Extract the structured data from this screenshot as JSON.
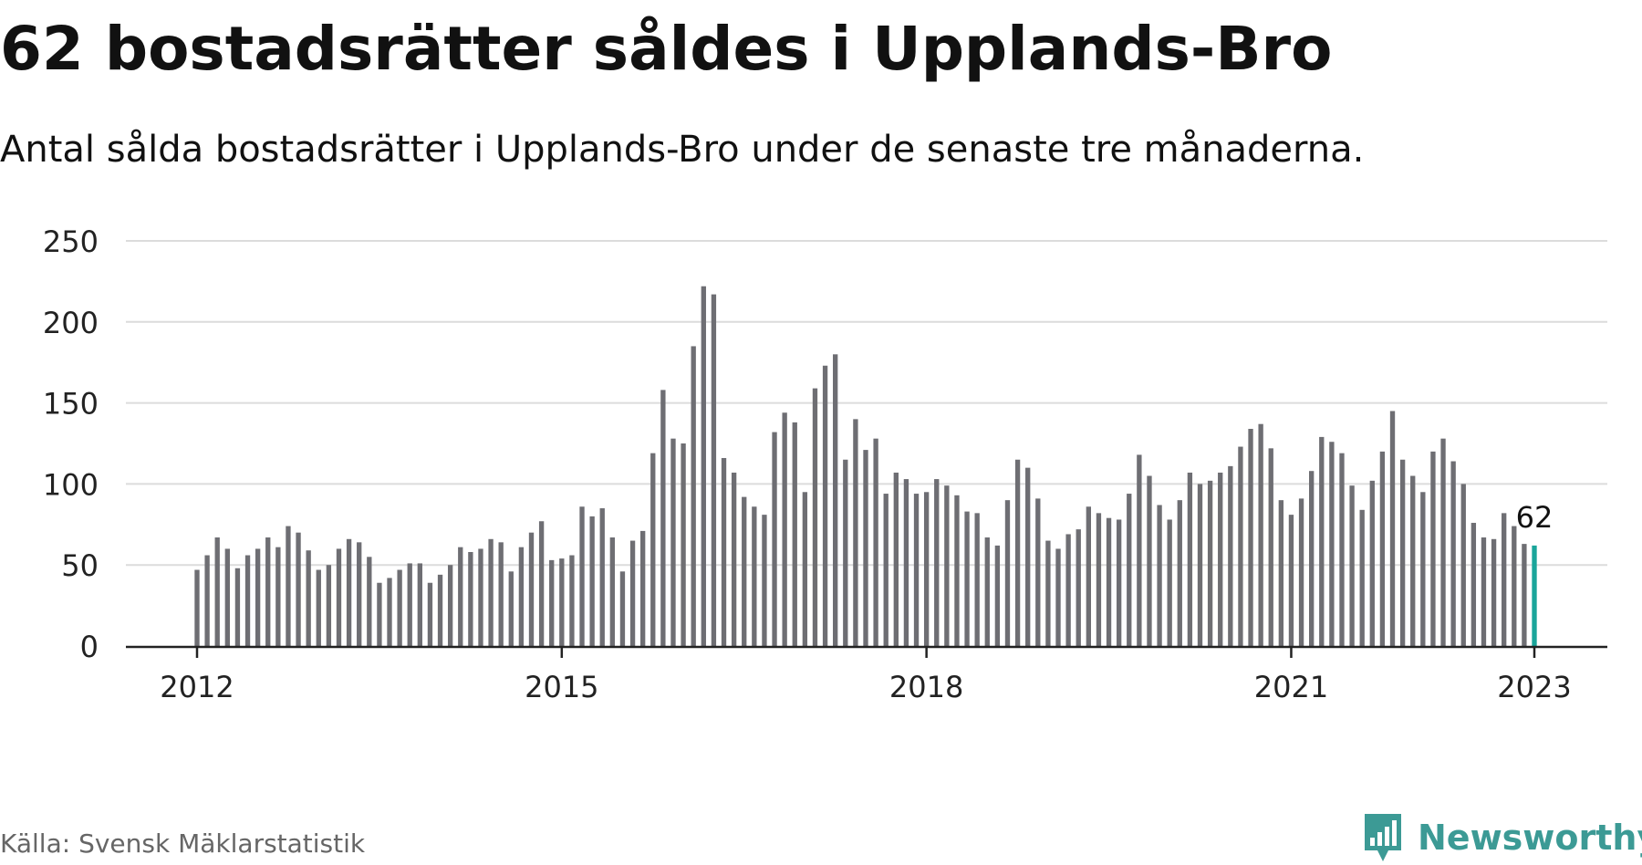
{
  "title": "62 bostadsrätter såldes i Upplands-Bro",
  "subtitle": "Antal sålda bostadsrätter i Upplands-Bro under de senaste tre månaderna.",
  "source": "Källa: Svensk Mäklarstatistik",
  "brand": {
    "name": "Newsworthy",
    "logo_icon": "newsworthy-logo-icon",
    "color": "#3c9a95"
  },
  "chart_data": {
    "type": "bar",
    "x_start": "2012-01",
    "x_end": "2023-01",
    "x_ticks": [
      "2012",
      "2015",
      "2018",
      "2021",
      "2023"
    ],
    "y_ticks": [
      0,
      50,
      100,
      150,
      200,
      250
    ],
    "ylim": [
      0,
      250
    ],
    "grid": true,
    "bar_color": "#6e6e73",
    "highlight_color": "#1aa59a",
    "highlight_label": "62",
    "values": [
      47,
      56,
      67,
      60,
      48,
      56,
      60,
      67,
      61,
      74,
      70,
      59,
      47,
      50,
      60,
      66,
      64,
      55,
      39,
      42,
      47,
      51,
      51,
      39,
      44,
      50,
      61,
      58,
      60,
      66,
      64,
      46,
      61,
      70,
      77,
      53,
      54,
      56,
      86,
      80,
      85,
      67,
      46,
      65,
      71,
      119,
      158,
      128,
      125,
      185,
      222,
      217,
      116,
      107,
      92,
      86,
      81,
      132,
      144,
      138,
      95,
      159,
      173,
      180,
      115,
      140,
      121,
      128,
      94,
      107,
      103,
      94,
      95,
      103,
      99,
      93,
      83,
      82,
      67,
      62,
      90,
      115,
      110,
      91,
      65,
      60,
      69,
      72,
      86,
      82,
      79,
      78,
      94,
      118,
      105,
      87,
      78,
      90,
      107,
      100,
      102,
      107,
      111,
      123,
      134,
      137,
      122,
      90,
      81,
      91,
      108,
      129,
      126,
      119,
      99,
      84,
      102,
      120,
      145,
      115,
      105,
      95,
      120,
      128,
      114,
      100,
      76,
      67,
      66,
      82,
      74,
      63,
      62
    ]
  }
}
